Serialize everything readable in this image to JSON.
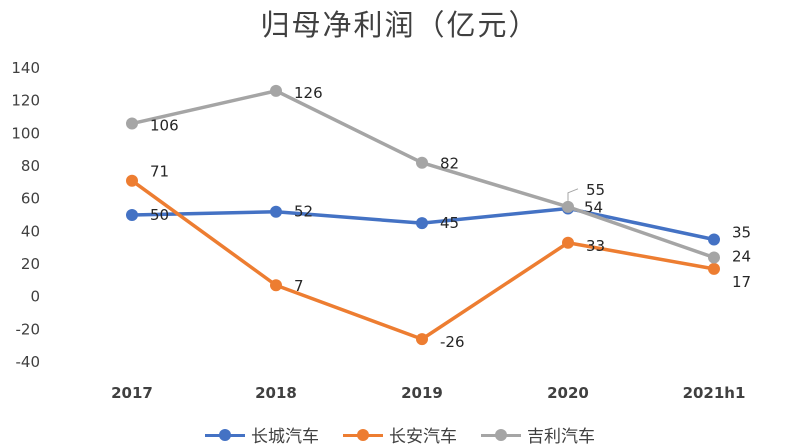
{
  "chart_data": {
    "type": "line",
    "title": "归母净利润（亿元）",
    "categories": [
      "2017",
      "2018",
      "2019",
      "2020",
      "2021h1"
    ],
    "ylim": [
      -40,
      140
    ],
    "yticks": [
      140,
      120,
      100,
      80,
      60,
      40,
      20,
      0,
      -20,
      -40
    ],
    "grid": false,
    "legend_position": "bottom",
    "series": [
      {
        "name": "长城汽车",
        "color": "#4472C4",
        "values": [
          50,
          52,
          45,
          54,
          35
        ]
      },
      {
        "name": "长安汽车",
        "color": "#ED7D31",
        "values": [
          71,
          7,
          -26,
          33,
          17
        ]
      },
      {
        "name": "吉利汽车",
        "color": "#A5A5A5",
        "values": [
          106,
          126,
          82,
          55,
          24
        ]
      }
    ]
  }
}
